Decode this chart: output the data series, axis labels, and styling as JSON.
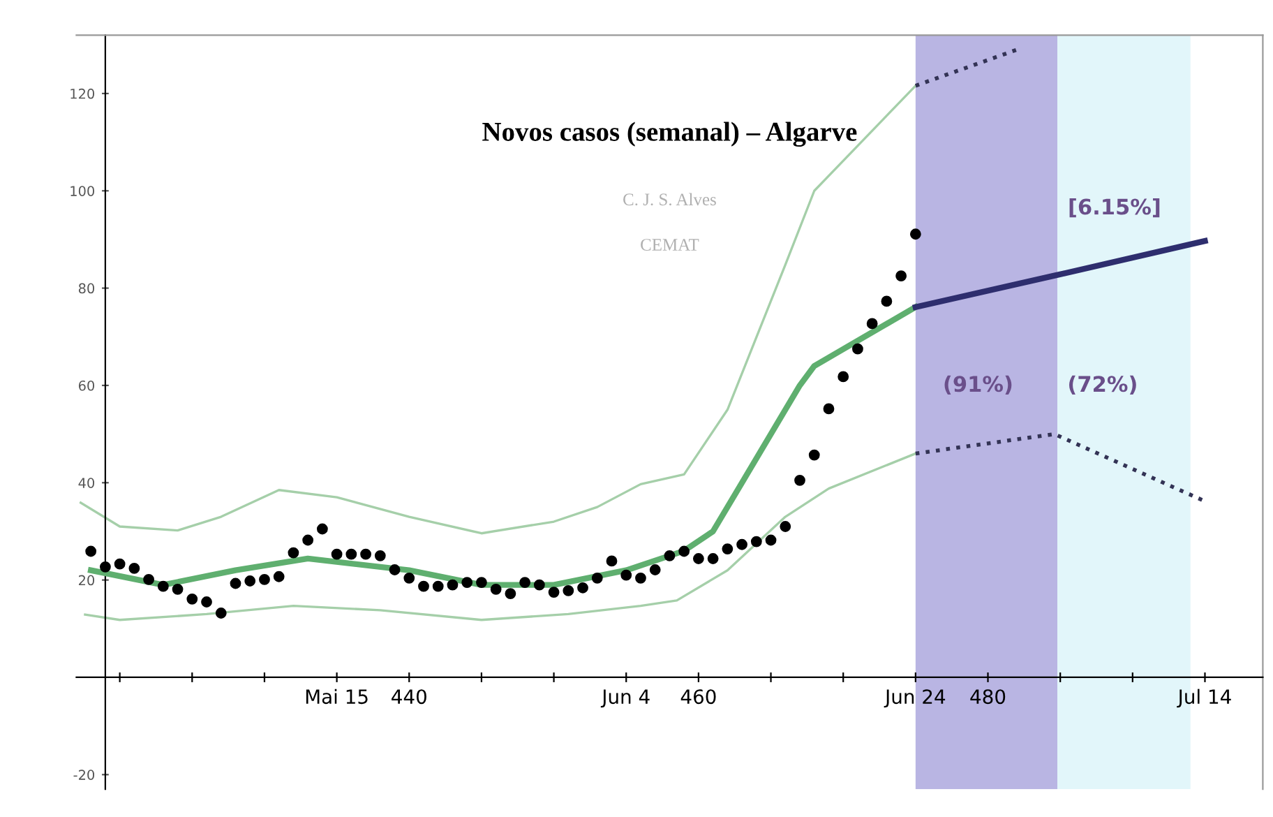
{
  "chart_data": {
    "type": "line",
    "title": "Novos casos (semanal) – Algarve",
    "annotations": [
      "C. J. S. Alves",
      "CEMAT",
      "[6.15%]",
      "(91%)",
      "(72%)"
    ],
    "bands": [
      {
        "axis": "x",
        "from": 475,
        "to": 484.8,
        "color": "#b9b5e3"
      },
      {
        "axis": "x",
        "from": 484.8,
        "to": 494,
        "color": "#e2f6fa"
      }
    ],
    "xlim": [
      417,
      499
    ],
    "ylim": [
      -23,
      132
    ],
    "xticks": [
      {
        "value": 420,
        "label": null
      },
      {
        "value": 425,
        "label": null
      },
      {
        "value": 430,
        "label": null
      },
      {
        "value": 435,
        "label": "Mai 15"
      },
      440,
      {
        "value": 445,
        "label": null
      },
      {
        "value": 450,
        "label": null
      },
      {
        "value": 455,
        "label": "Jun 4"
      },
      460,
      {
        "value": 465,
        "label": null
      },
      {
        "value": 470,
        "label": null
      },
      {
        "value": 475,
        "label": "Jun 24"
      },
      480,
      {
        "value": 485,
        "label": null
      },
      {
        "value": 490,
        "label": null
      },
      {
        "value": 495,
        "label": "Jul 14"
      }
    ],
    "yticks": [
      -20,
      20,
      40,
      60,
      80,
      100,
      120
    ],
    "grid": false,
    "legend": false,
    "series": [
      {
        "color": "#a5cfa9",
        "line_style": "solid",
        "x": [
          417.3,
          420,
          424,
          427,
          431,
          435,
          440,
          445,
          450,
          453,
          456,
          459,
          462,
          466,
          468,
          475
        ],
        "values": [
          35.9,
          31,
          30.2,
          33,
          38.5,
          37,
          33,
          29.6,
          32,
          35,
          39.7,
          41.7,
          55,
          84.8,
          100,
          121.6
        ]
      },
      {
        "color": "#a5cfa9",
        "line_style": "solid",
        "x": [
          417.6,
          420,
          426,
          432,
          438,
          445,
          451,
          456,
          458.5,
          462,
          466,
          469,
          475
        ],
        "values": [
          12.9,
          11.8,
          13,
          14.7,
          13.8,
          11.8,
          13,
          14.7,
          15.8,
          22,
          33,
          38.8,
          46
        ]
      },
      {
        "color": "#333355",
        "line_style": "dotted",
        "x": [
          475,
          482
        ],
        "values": [
          121.6,
          129
        ]
      },
      {
        "color": "#333355",
        "line_style": "dotted",
        "x": [
          475,
          484.6,
          495
        ],
        "values": [
          46,
          50,
          36.2
        ]
      },
      {
        "color": "#5faf6f",
        "line_style": "solid",
        "x": [
          418,
          423,
          428,
          433,
          440,
          445,
          450,
          455,
          459,
          461,
          463,
          465,
          467,
          468,
          475
        ],
        "values": [
          22,
          19,
          22,
          24.4,
          22,
          19,
          19,
          22,
          26,
          30,
          40,
          50,
          60,
          64,
          76.1
        ]
      },
      {
        "color": "#2e2e6e",
        "line_style": "solid",
        "x": [
          475,
          484.5,
          495
        ],
        "values": [
          76.1,
          82.5,
          89.7
        ]
      },
      {
        "type": "scatter",
        "color": "#000000",
        "marker": "circle",
        "x": [
          418,
          419,
          420,
          421,
          422,
          423,
          424,
          425,
          426,
          427,
          428,
          429,
          430,
          431,
          432,
          433,
          434,
          435,
          436,
          437,
          438,
          439,
          440,
          441,
          442,
          443,
          444,
          445,
          446,
          447,
          448,
          449,
          450,
          451,
          452,
          453,
          454,
          455,
          456,
          457,
          458,
          459,
          460,
          461,
          462,
          463,
          464,
          465,
          466,
          467,
          468,
          469,
          470,
          471,
          472,
          473,
          474,
          475
        ],
        "values": [
          25.9,
          22.7,
          23.3,
          22.4,
          20.1,
          18.7,
          18.1,
          16.1,
          15.5,
          13.2,
          19.3,
          19.8,
          20.1,
          20.7,
          25.6,
          28.2,
          30.5,
          25.3,
          25.3,
          25.3,
          25,
          22.1,
          20.4,
          18.7,
          18.7,
          19,
          19.5,
          19.5,
          18.1,
          17.2,
          19.5,
          19,
          17.5,
          17.8,
          18.4,
          20.4,
          23.9,
          21,
          20.4,
          22.1,
          25,
          25.9,
          24.4,
          24.4,
          26.4,
          27.3,
          27.9,
          28.2,
          31,
          40.5,
          45.7,
          55.2,
          61.8,
          67.5,
          72.7,
          77.3,
          82.5,
          91.1
        ]
      }
    ]
  }
}
